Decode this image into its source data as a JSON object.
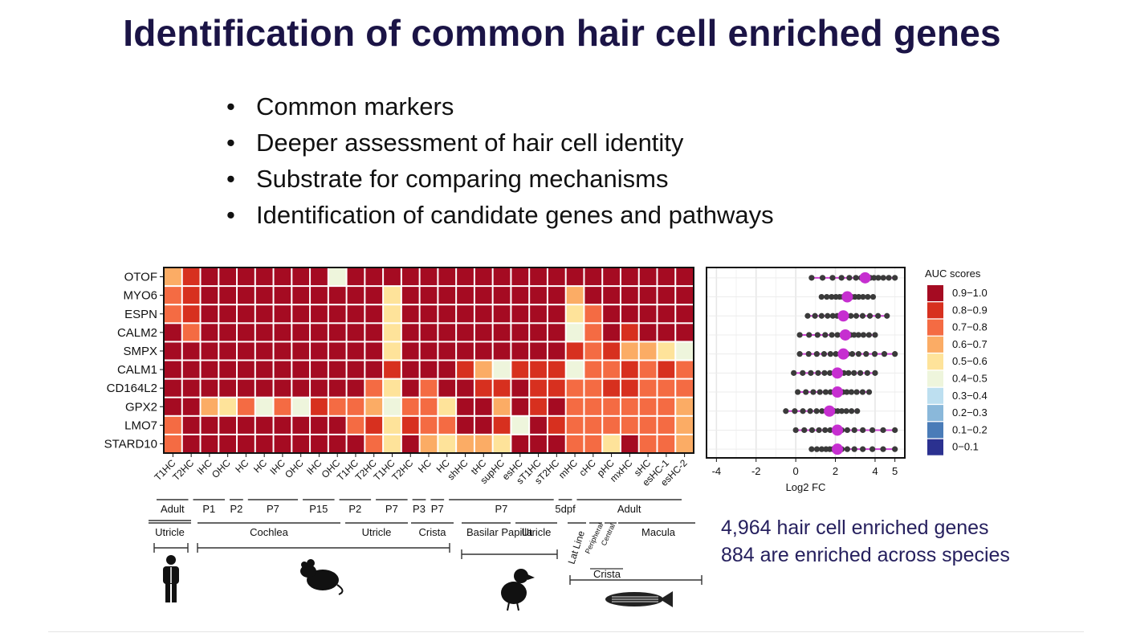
{
  "title": "Identification of common hair cell enriched genes",
  "bullets": [
    "Common markers",
    "Deeper assessment of hair cell identity",
    "Substrate for comparing mechanisms",
    "Identification of candidate genes and pathways"
  ],
  "summary": {
    "line1": "4,964 hair cell enriched genes",
    "line2": "884 are enriched across species"
  },
  "chart_data": [
    {
      "type": "heatmap",
      "title": "",
      "rows": [
        "OTOF",
        "MYO6",
        "ESPN",
        "CALM2",
        "SMPX",
        "CALM1",
        "CD164L2",
        "GPX2",
        "LMO7",
        "STARD10"
      ],
      "columns": [
        "T1HC",
        "T2HC",
        "IHC",
        "OHC",
        "HC",
        "HC",
        "IHC",
        "OHC",
        "IHC",
        "OHC",
        "T1HC",
        "T2HC",
        "T1HC",
        "T2HC",
        "HC",
        "HC",
        "shHC",
        "tHC",
        "supHC",
        "esHC",
        "sT1HC",
        "sT2HC",
        "mHC",
        "cHC",
        "pHC",
        "mxHC",
        "sHC",
        "esHC-1",
        "esHC-2"
      ],
      "values": [
        [
          0.65,
          0.85,
          0.95,
          0.95,
          0.95,
          0.95,
          0.95,
          0.95,
          0.95,
          0.45,
          0.95,
          0.95,
          0.95,
          0.95,
          0.95,
          0.95,
          0.95,
          0.95,
          0.95,
          0.95,
          0.95,
          0.95,
          0.95,
          0.95,
          0.95,
          0.95,
          0.95,
          0.95,
          0.95
        ],
        [
          0.75,
          0.85,
          0.95,
          0.95,
          0.95,
          0.95,
          0.95,
          0.95,
          0.95,
          0.95,
          0.95,
          0.95,
          0.6,
          0.95,
          0.95,
          0.95,
          0.95,
          0.95,
          0.95,
          0.95,
          0.95,
          0.95,
          0.7,
          0.95,
          0.95,
          0.95,
          0.95,
          0.95,
          0.95
        ],
        [
          0.75,
          0.85,
          0.95,
          0.95,
          0.95,
          0.95,
          0.95,
          0.95,
          0.95,
          0.95,
          0.95,
          0.95,
          0.6,
          0.95,
          0.95,
          0.95,
          0.95,
          0.95,
          0.95,
          0.95,
          0.95,
          0.95,
          0.6,
          0.75,
          0.95,
          0.95,
          0.95,
          0.95,
          0.95
        ],
        [
          0.95,
          0.75,
          0.95,
          0.95,
          0.95,
          0.95,
          0.95,
          0.95,
          0.95,
          0.95,
          0.95,
          0.95,
          0.6,
          0.95,
          0.95,
          0.95,
          0.95,
          0.95,
          0.95,
          0.95,
          0.95,
          0.95,
          0.45,
          0.75,
          0.95,
          0.85,
          0.95,
          0.95,
          0.95
        ],
        [
          0.95,
          0.95,
          0.95,
          0.95,
          0.95,
          0.95,
          0.95,
          0.95,
          0.95,
          0.95,
          0.95,
          0.95,
          0.6,
          0.95,
          0.95,
          0.95,
          0.95,
          0.95,
          0.95,
          0.95,
          0.95,
          0.95,
          0.85,
          0.75,
          0.85,
          0.65,
          0.65,
          0.6,
          0.5
        ],
        [
          0.95,
          0.95,
          0.95,
          0.95,
          0.95,
          0.95,
          0.95,
          0.95,
          0.95,
          0.95,
          0.95,
          0.95,
          0.85,
          0.95,
          0.95,
          0.95,
          0.85,
          0.65,
          0.5,
          0.85,
          0.85,
          0.85,
          0.45,
          0.75,
          0.75,
          0.85,
          0.75,
          0.85,
          0.75
        ],
        [
          0.95,
          0.95,
          0.95,
          0.95,
          0.95,
          0.95,
          0.95,
          0.95,
          0.95,
          0.95,
          0.95,
          0.75,
          0.6,
          0.95,
          0.75,
          0.95,
          0.95,
          0.85,
          0.85,
          0.95,
          0.85,
          0.85,
          0.75,
          0.75,
          0.85,
          0.85,
          0.75,
          0.75,
          0.75
        ],
        [
          0.95,
          0.95,
          0.65,
          0.6,
          0.75,
          0.5,
          0.75,
          0.5,
          0.85,
          0.75,
          0.75,
          0.65,
          0.45,
          0.75,
          0.75,
          0.6,
          0.95,
          0.95,
          0.65,
          0.95,
          0.85,
          0.95,
          0.75,
          0.75,
          0.75,
          0.75,
          0.75,
          0.75,
          0.65
        ],
        [
          0.75,
          0.95,
          0.95,
          0.95,
          0.95,
          0.95,
          0.95,
          0.95,
          0.95,
          0.95,
          0.75,
          0.85,
          0.6,
          0.85,
          0.75,
          0.75,
          0.95,
          0.95,
          0.85,
          0.5,
          0.95,
          0.85,
          0.75,
          0.75,
          0.75,
          0.75,
          0.75,
          0.75,
          0.65
        ],
        [
          0.75,
          0.95,
          0.95,
          0.95,
          0.95,
          0.95,
          0.95,
          0.95,
          0.95,
          0.95,
          0.95,
          0.75,
          0.55,
          0.95,
          0.65,
          0.55,
          0.65,
          0.65,
          0.6,
          0.95,
          0.95,
          0.95,
          0.75,
          0.75,
          0.6,
          0.95,
          0.75,
          0.75,
          0.65
        ]
      ],
      "color_scale": [
        {
          "label": "0.9−1.0",
          "color": "#a50b22"
        },
        {
          "label": "0.8−0.9",
          "color": "#d7301f"
        },
        {
          "label": "0.7−0.8",
          "color": "#f46b43"
        },
        {
          "label": "0.6−0.7",
          "color": "#fbac65"
        },
        {
          "label": "0.5−0.6",
          "color": "#fee39a"
        },
        {
          "label": "0.4−0.5",
          "color": "#eef5dc"
        },
        {
          "label": "0.3−0.4",
          "color": "#bddff0"
        },
        {
          "label": "0.2−0.3",
          "color": "#8ab8da"
        },
        {
          "label": "0.1−0.2",
          "color": "#4a7cb8"
        },
        {
          "label": "0−0.1",
          "color": "#2b3190"
        }
      ],
      "legend_title": "AUC scores",
      "stage_groups": [
        "Adult",
        "P1",
        "P2",
        "P7",
        "P15",
        "P2",
        "P7",
        "P3",
        "P7",
        "P7",
        "5dpf",
        "Adult"
      ],
      "tissue_groups": [
        "Utricle",
        "Cochlea",
        "Utricle",
        "Crista",
        "Basilar Papilla",
        "Utricle",
        "Lat Line",
        "Peripheral",
        "Central",
        "Macula",
        "Crista"
      ]
    },
    {
      "type": "scatter",
      "xlabel": "Log2 FC",
      "xlim": [
        -4.5,
        5.5
      ],
      "xticks": [
        -4,
        -2,
        0,
        2,
        4,
        5
      ],
      "series": [
        {
          "name": "OTOF",
          "median": 3.5,
          "range": [
            0.8,
            5.0
          ]
        },
        {
          "name": "MYO6",
          "median": 2.6,
          "range": [
            1.3,
            3.9
          ]
        },
        {
          "name": "ESPN",
          "median": 2.4,
          "range": [
            0.6,
            4.6
          ]
        },
        {
          "name": "CALM2",
          "median": 2.5,
          "range": [
            0.2,
            4.0
          ]
        },
        {
          "name": "SMPX",
          "median": 2.4,
          "range": [
            0.2,
            5.0
          ]
        },
        {
          "name": "CALM1",
          "median": 2.1,
          "range": [
            -0.1,
            4.0
          ]
        },
        {
          "name": "CD164L2",
          "median": 2.1,
          "range": [
            0.1,
            3.7
          ]
        },
        {
          "name": "GPX2",
          "median": 1.7,
          "range": [
            -0.5,
            3.1
          ]
        },
        {
          "name": "LMO7",
          "median": 2.1,
          "range": [
            0.0,
            5.0
          ]
        },
        {
          "name": "STARD10",
          "median": 2.1,
          "range": [
            0.8,
            5.0
          ]
        }
      ]
    }
  ]
}
